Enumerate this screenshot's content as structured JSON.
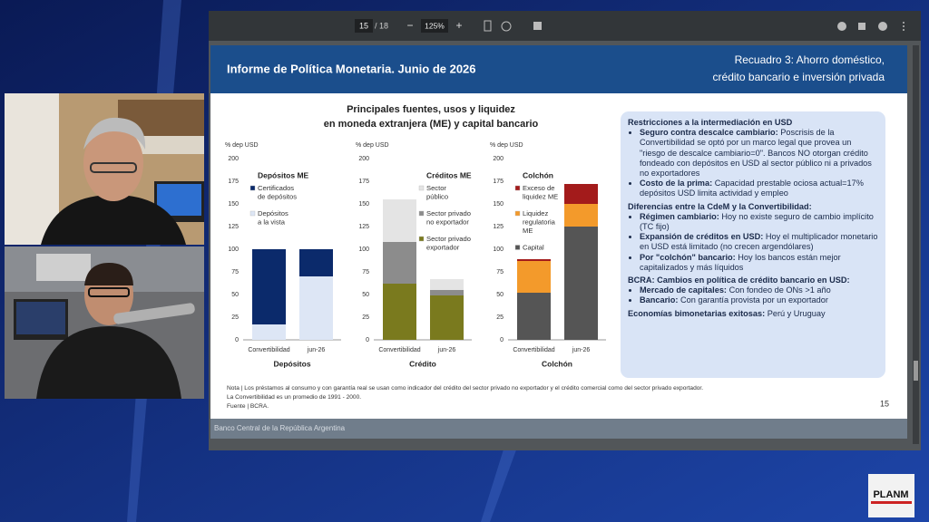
{
  "viewer": {
    "page": "15",
    "page_total": "/ 18",
    "zoom": "125%"
  },
  "slide": {
    "header_left": "Informe de Política Monetaria. Junio de 2026",
    "header_right": [
      "Recuadro 3: Ahorro doméstico,",
      "crédito bancario e inversión privada"
    ],
    "chart_title": [
      "Principales fuentes, usos y liquidez",
      "en moneda extranjera (ME) y capital bancario"
    ],
    "charts": [
      {
        "type": "bar",
        "stacked": true,
        "title": "Depósitos ME",
        "xlabel": "Depósitos",
        "ylabel": "% dep USD",
        "categories": [
          "Convertibilidad",
          "jun-26"
        ],
        "ylim": [
          0,
          200
        ],
        "yticks": [
          0,
          25,
          50,
          75,
          100,
          125,
          150,
          175,
          200
        ],
        "series": [
          {
            "name": [
              "Certificados",
              "de depósitos"
            ],
            "color": "#0b2a6b",
            "values": [
              83,
              30
            ]
          },
          {
            "name": [
              "Depósitos",
              "a la vista"
            ],
            "color": "#dde6f5",
            "values": [
              17,
              70
            ]
          }
        ]
      },
      {
        "type": "bar",
        "stacked": true,
        "title": "Créditos ME",
        "xlabel": "Crédito",
        "ylabel": "% dep USD",
        "categories": [
          "Convertibilidad",
          "jun-26"
        ],
        "ylim": [
          0,
          200
        ],
        "yticks": [
          0,
          25,
          50,
          75,
          100,
          125,
          150,
          175,
          200
        ],
        "series": [
          {
            "name": [
              "Sector",
              "público"
            ],
            "color": "#e4e4e4",
            "values": [
              47,
              12
            ]
          },
          {
            "name": [
              "Sector privado",
              "no exportador"
            ],
            "color": "#8c8c8c",
            "values": [
              46,
              6
            ]
          },
          {
            "name": [
              "Sector privado",
              "exportador"
            ],
            "color": "#7a7a1e",
            "values": [
              62,
              49
            ]
          }
        ]
      },
      {
        "type": "bar",
        "stacked": true,
        "title": "Colchón",
        "xlabel": "Colchón",
        "ylabel": "% dep USD",
        "categories": [
          "Convertibilidad",
          "jun-26"
        ],
        "ylim": [
          0,
          200
        ],
        "yticks": [
          0,
          25,
          50,
          75,
          100,
          125,
          150,
          175,
          200
        ],
        "series": [
          {
            "name": [
              "Exceso de",
              "liquidez ME"
            ],
            "color": "#a31b1b",
            "values": [
              2,
              22
            ]
          },
          {
            "name": [
              "Liquidez",
              "regulatoria",
              "ME"
            ],
            "color": "#f39a2b",
            "values": [
              35,
              25
            ]
          },
          {
            "name": [
              "Capital"
            ],
            "color": "#555555",
            "values": [
              52,
              125
            ]
          }
        ]
      }
    ],
    "notes": [
      "Nota | Los préstamos al consumo y con garantía real se usan como indicador del crédito del sector privado no exportador y el crédito comercial como del sector privado exportador.",
      "La Convertibilidad es un promedio de 1991 - 2000.",
      "Fuente | BCRA."
    ],
    "page_number": "15",
    "footer": "Banco Central de la República Argentina"
  },
  "box": {
    "sections": [
      {
        "heading": "Restricciones a la intermediación en USD",
        "bullets": [
          {
            "bold": "Seguro contra descalce cambiario:",
            "text": "Poscrisis de la Convertibilidad se optó por un marco legal que provea un \"riesgo de descalce cambiario=0\". Bancos NO otorgan crédito fondeado con depósitos en USD al sector público ni a privados no exportadores"
          },
          {
            "bold": "Costo de la prima:",
            "text": "Capacidad prestable ociosa actual=17% depósitos USD limita actividad y empleo"
          }
        ]
      },
      {
        "heading": "Diferencias entre la CdeM y la Convertibilidad:",
        "bullets": [
          {
            "bold": "Régimen cambiario:",
            "text": "Hoy no existe seguro de cambio implícito (TC fijo)"
          },
          {
            "bold": "Expansión de créditos en USD:",
            "text": "Hoy el multiplicador monetario en USD está limitado (no crecen argendólares)"
          },
          {
            "bold": "Por \"colchón\" bancario:",
            "text": "Hoy los bancos están mejor capitalizados y más líquidos"
          }
        ]
      },
      {
        "heading": "BCRA: Cambios en política de crédito bancario en USD:",
        "bullets": [
          {
            "bold": "Mercado de capitales:",
            "text": "Con fondeo de ONs >1 año"
          },
          {
            "bold": "Bancario:",
            "text": "Con garantía provista por un exportador"
          }
        ]
      },
      {
        "heading": "Economías bimonetarias exitosas:",
        "tail": "Perú y Uruguay",
        "bullets": []
      }
    ]
  },
  "logo": "PLANM"
}
